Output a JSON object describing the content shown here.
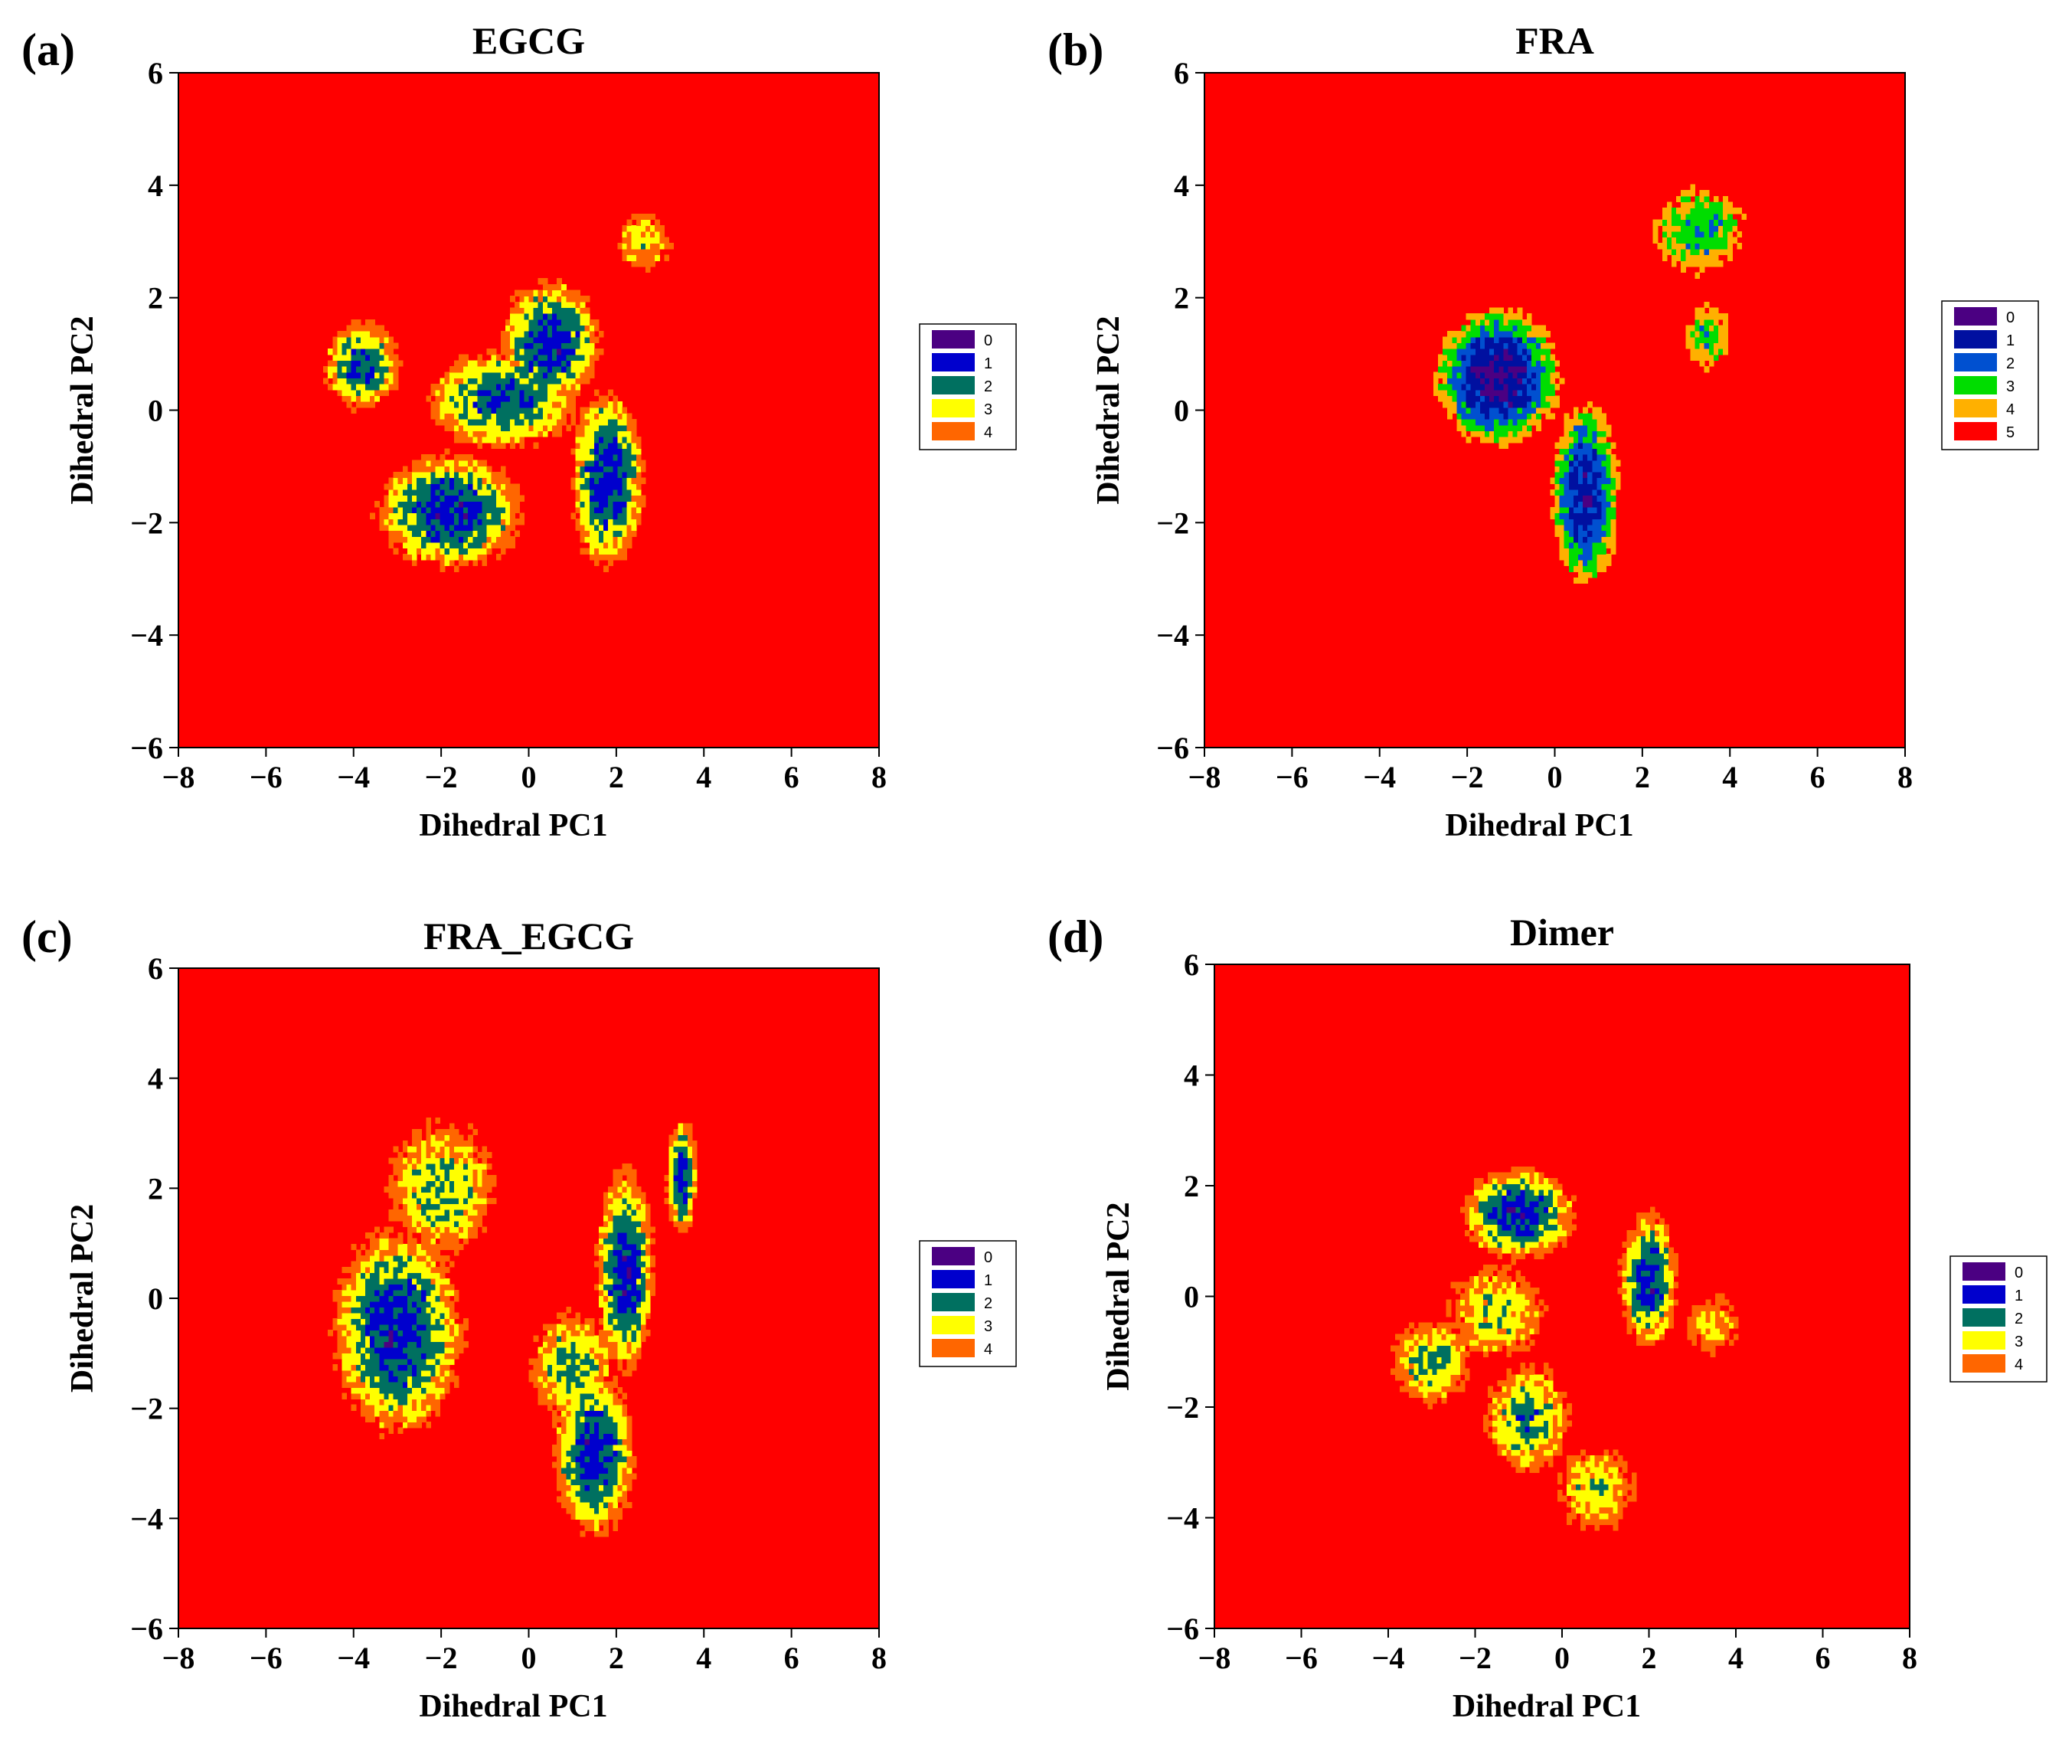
{
  "figure": {
    "panels": [
      {
        "panel_label": "(a)",
        "legend": [
          "0",
          "1",
          "2",
          "3",
          "4"
        ],
        "chart_data": {
          "type": "heatmap",
          "title": "EGCG",
          "xlabel": "Dihedral PC1",
          "ylabel": "Dihedral PC2",
          "xlim": [
            -8,
            8
          ],
          "ylim": [
            -6,
            6
          ],
          "xticks": [
            "−8",
            "−6",
            "−4",
            "−2",
            "0",
            "2",
            "4",
            "6",
            "8"
          ],
          "yticks": [
            "−6",
            "−4",
            "−2",
            "0",
            "2",
            "4",
            "6"
          ],
          "background_level": 5,
          "basins": [
            {
              "x": -1.8,
              "y": -1.8,
              "sx": 0.9,
              "sy": 0.55,
              "min_level": 1
            },
            {
              "x": 1.8,
              "y": -1.2,
              "sx": 0.45,
              "sy": 0.85,
              "min_level": 1
            },
            {
              "x": 0.5,
              "y": 1.2,
              "sx": 0.6,
              "sy": 0.6,
              "min_level": 1
            },
            {
              "x": -0.6,
              "y": 0.2,
              "sx": 1.0,
              "sy": 0.5,
              "min_level": 1.5
            },
            {
              "x": -3.8,
              "y": 0.8,
              "sx": 0.5,
              "sy": 0.45,
              "min_level": 1.5
            },
            {
              "x": 2.6,
              "y": 3.0,
              "sx": 0.5,
              "sy": 0.4,
              "min_level": 3
            }
          ],
          "color_levels": [
            "#4B0082",
            "#0000CD",
            "#007060",
            "#FFFF00",
            "#FF6600",
            "#FF0000"
          ]
        }
      },
      {
        "panel_label": "(b)",
        "legend": [
          "0",
          "1",
          "2",
          "3",
          "4",
          "5"
        ],
        "chart_data": {
          "type": "heatmap",
          "title": "FRA",
          "xlabel": "Dihedral PC1",
          "ylabel": "Dihedral PC2",
          "xlim": [
            -8,
            8
          ],
          "ylim": [
            -6,
            6
          ],
          "xticks": [
            "−8",
            "−6",
            "−4",
            "−2",
            "0",
            "2",
            "4",
            "6",
            "8"
          ],
          "yticks": [
            "−6",
            "−4",
            "−2",
            "0",
            "2",
            "4",
            "6"
          ],
          "background_level": 5,
          "basins": [
            {
              "x": -1.3,
              "y": 0.6,
              "sx": 0.7,
              "sy": 0.6,
              "min_level": 0.3
            },
            {
              "x": 0.7,
              "y": -1.5,
              "sx": 0.4,
              "sy": 0.85,
              "min_level": 0.8
            },
            {
              "x": 3.3,
              "y": 3.2,
              "sx": 0.7,
              "sy": 0.5,
              "min_level": 2.5
            },
            {
              "x": 3.5,
              "y": 1.3,
              "sx": 0.35,
              "sy": 0.4,
              "min_level": 2.7
            }
          ],
          "color_levels": [
            "#4B0082",
            "#0010A0",
            "#0050D0",
            "#00DD00",
            "#FFB000",
            "#FF0000"
          ]
        }
      },
      {
        "panel_label": "(c)",
        "legend": [
          "0",
          "1",
          "2",
          "3",
          "4"
        ],
        "chart_data": {
          "type": "heatmap",
          "title": "FRA_EGCG",
          "xlabel": "Dihedral PC1",
          "ylabel": "Dihedral PC2",
          "xlim": [
            -8,
            8
          ],
          "ylim": [
            -6,
            6
          ],
          "xticks": [
            "−8",
            "−6",
            "−4",
            "−2",
            "0",
            "2",
            "4",
            "6",
            "8"
          ],
          "yticks": [
            "−6",
            "−4",
            "−2",
            "0",
            "2",
            "4",
            "6"
          ],
          "background_level": 5,
          "basins": [
            {
              "x": -3.0,
              "y": -0.6,
              "sx": 0.8,
              "sy": 1.0,
              "min_level": 1.0
            },
            {
              "x": -2.0,
              "y": 2.0,
              "sx": 0.8,
              "sy": 0.8,
              "min_level": 2.3
            },
            {
              "x": 2.2,
              "y": 0.5,
              "sx": 0.35,
              "sy": 1.0,
              "min_level": 1.0
            },
            {
              "x": 1.5,
              "y": -2.8,
              "sx": 0.5,
              "sy": 0.8,
              "min_level": 1.0
            },
            {
              "x": 3.5,
              "y": 2.2,
              "sx": 0.2,
              "sy": 0.6,
              "min_level": 1.3
            },
            {
              "x": 1.0,
              "y": -1.2,
              "sx": 0.6,
              "sy": 0.6,
              "min_level": 2.2
            }
          ],
          "color_levels": [
            "#4B0082",
            "#0000CD",
            "#007060",
            "#FFFF00",
            "#FF6600",
            "#FF0000"
          ]
        }
      },
      {
        "panel_label": "(d)",
        "legend": [
          "0",
          "1",
          "2",
          "3",
          "4"
        ],
        "chart_data": {
          "type": "heatmap",
          "title": "Dimer",
          "xlabel": "Dihedral PC1",
          "ylabel": "Dihedral PC2",
          "xlim": [
            -8,
            8
          ],
          "ylim": [
            -6,
            6
          ],
          "xticks": [
            "−8",
            "−6",
            "−4",
            "−2",
            "0",
            "2",
            "4",
            "6",
            "8"
          ],
          "yticks": [
            "−6",
            "−4",
            "−2",
            "0",
            "2",
            "4",
            "6"
          ],
          "background_level": 5,
          "basins": [
            {
              "x": -1.0,
              "y": 1.5,
              "sx": 0.7,
              "sy": 0.45,
              "min_level": 1.0
            },
            {
              "x": 2.0,
              "y": 0.3,
              "sx": 0.35,
              "sy": 0.65,
              "min_level": 1.0
            },
            {
              "x": -0.8,
              "y": -2.2,
              "sx": 0.6,
              "sy": 0.6,
              "min_level": 2.0
            },
            {
              "x": -3.0,
              "y": -1.2,
              "sx": 0.6,
              "sy": 0.5,
              "min_level": 2.3
            },
            {
              "x": 0.8,
              "y": -3.5,
              "sx": 0.6,
              "sy": 0.5,
              "min_level": 2.6
            },
            {
              "x": -1.5,
              "y": -0.3,
              "sx": 0.8,
              "sy": 0.6,
              "min_level": 2.7
            },
            {
              "x": 3.5,
              "y": -0.5,
              "sx": 0.5,
              "sy": 0.4,
              "min_level": 3.2
            }
          ],
          "color_levels": [
            "#4B0082",
            "#0000CD",
            "#007060",
            "#FFFF00",
            "#FF6600",
            "#FF0000"
          ]
        }
      }
    ]
  }
}
